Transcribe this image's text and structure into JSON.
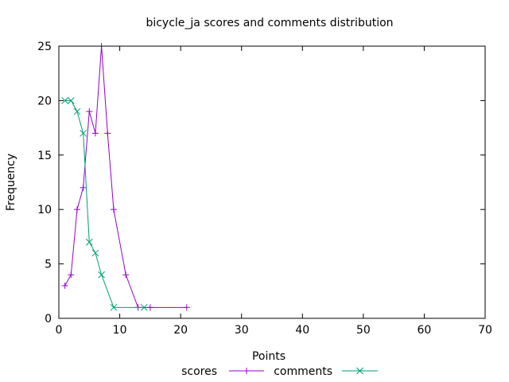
{
  "chart_data": {
    "type": "line",
    "title": "bicycle_ja scores and comments distribution",
    "xlabel": "Points",
    "ylabel": "Frequency",
    "xlim": [
      0,
      70
    ],
    "ylim": [
      0,
      25
    ],
    "xticks": [
      0,
      10,
      20,
      30,
      40,
      50,
      60,
      70
    ],
    "yticks": [
      0,
      5,
      10,
      15,
      20,
      25
    ],
    "grid": false,
    "legend_position": "bottom",
    "series": [
      {
        "name": "scores",
        "color": "#9400d3",
        "marker": "plus",
        "x": [
          1,
          2,
          3,
          4,
          5,
          6,
          7,
          8,
          9,
          11,
          13,
          15,
          21
        ],
        "y": [
          3,
          4,
          10,
          12,
          19,
          17,
          25,
          17,
          10,
          4,
          1,
          1,
          1
        ]
      },
      {
        "name": "comments",
        "color": "#009e73",
        "marker": "cross",
        "x": [
          1,
          2,
          3,
          4,
          5,
          6,
          7,
          9,
          14
        ],
        "y": [
          20,
          20,
          19,
          17,
          7,
          6,
          4,
          1,
          1
        ]
      }
    ]
  }
}
